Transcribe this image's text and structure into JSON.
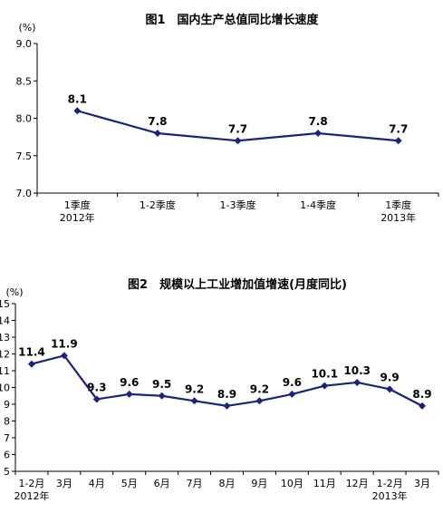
{
  "chart_data": [
    {
      "type": "line",
      "title": "图1　国内生产总值同比增长速度",
      "unit": "(%)",
      "categories": [
        "1季度",
        "1-2季度",
        "1-3季度",
        "1-4季度",
        "1季度"
      ],
      "year_labels": [
        "2012年",
        "",
        "",
        "",
        "2013年"
      ],
      "values": [
        8.1,
        7.8,
        7.7,
        7.8,
        7.7
      ],
      "data_labels": [
        "8.1",
        "7.8",
        "7.7",
        "7.8",
        "7.7"
      ],
      "ylim": [
        7.0,
        9.0
      ],
      "yticks": [
        "7.0",
        "7.5",
        "8.0",
        "8.5",
        "9.0"
      ],
      "color": "#1a237e",
      "grid": false,
      "legend": "none"
    },
    {
      "type": "line",
      "title": "图2　规模以上工业增加值增速(月度同比)",
      "unit": "(%)",
      "categories": [
        "1-2月",
        "3月",
        "4月",
        "5月",
        "6月",
        "7月",
        "8月",
        "9月",
        "10月",
        "11月",
        "12月",
        "1-2月",
        "3月"
      ],
      "year_labels": [
        "2012年",
        "",
        "",
        "",
        "",
        "",
        "",
        "",
        "",
        "",
        "",
        "2013年",
        ""
      ],
      "values": [
        11.4,
        11.9,
        9.3,
        9.6,
        9.5,
        9.2,
        8.9,
        9.2,
        9.6,
        10.1,
        10.3,
        9.9,
        8.9
      ],
      "data_labels": [
        "11.4",
        "11.9",
        "9.3",
        "9.6",
        "9.5",
        "9.2",
        "8.9",
        "9.2",
        "9.6",
        "10.1",
        "10.3",
        "9.9",
        "8.9"
      ],
      "ylim": [
        5,
        15
      ],
      "yticks": [
        "5",
        "6",
        "7",
        "8",
        "9",
        "10",
        "11",
        "12",
        "13",
        "14",
        "15"
      ],
      "color": "#1a237e",
      "grid": false,
      "legend": "none"
    }
  ]
}
